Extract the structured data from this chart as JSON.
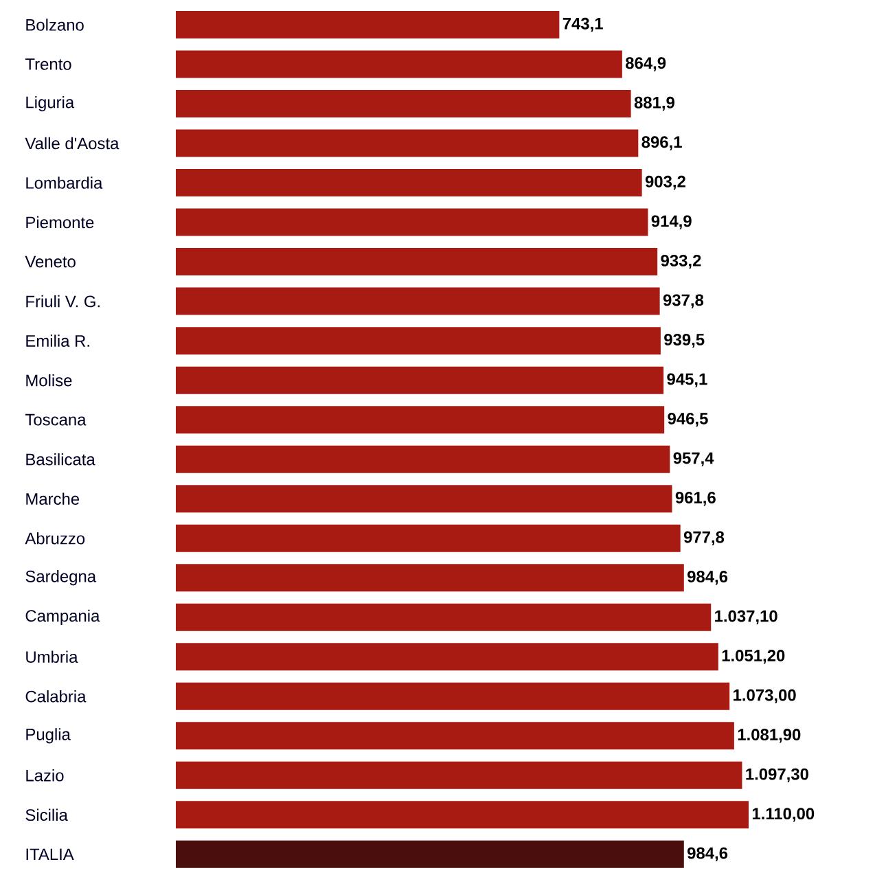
{
  "chart_data": {
    "type": "bar",
    "orientation": "horizontal",
    "categories": [
      "Bolzano",
      "Trento",
      "Liguria",
      "Valle d'Aosta",
      "Lombardia",
      "Piemonte",
      "Veneto",
      "Friuli V. G.",
      "Emilia R.",
      "Molise",
      "Toscana",
      "Basilicata",
      "Marche",
      "Abruzzo",
      "Sardegna",
      "Campania",
      "Umbria",
      "Calabria",
      "Puglia",
      "Lazio",
      "Sicilia",
      "ITALIA"
    ],
    "values": [
      743.1,
      864.9,
      881.9,
      896.1,
      903.2,
      914.9,
      933.2,
      937.8,
      939.5,
      945.1,
      946.5,
      957.4,
      961.6,
      977.8,
      984.6,
      1037.1,
      1051.2,
      1073.0,
      1081.9,
      1097.3,
      1110.0,
      984.6
    ],
    "value_labels": [
      "743,1",
      "864,9",
      "881,9",
      "896,1",
      "903,2",
      "914,9",
      "933,2",
      "937,8",
      "939,5",
      "945,1",
      "946,5",
      "957,4",
      "961,6",
      "977,8",
      "984,6",
      "1.037,10",
      "1.051,20",
      "1.073,00",
      "1.081,90",
      "1.097,30",
      "1.110,00",
      "984,6"
    ],
    "colors": [
      "#a81b12",
      "#a81b12",
      "#a81b12",
      "#a81b12",
      "#a81b12",
      "#a81b12",
      "#a81b12",
      "#a81b12",
      "#a81b12",
      "#a81b12",
      "#a81b12",
      "#a81b12",
      "#a81b12",
      "#a81b12",
      "#a81b12",
      "#a81b12",
      "#a81b12",
      "#a81b12",
      "#a81b12",
      "#a81b12",
      "#a81b12",
      "#4a0f0c"
    ]
  }
}
